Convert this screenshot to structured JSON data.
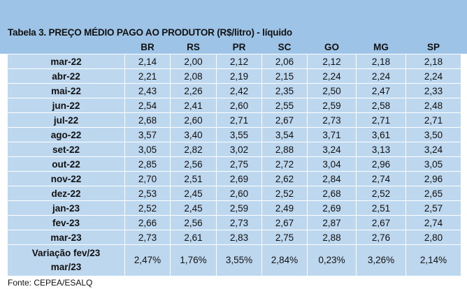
{
  "title": "Tabela 3. PREÇO MÉDIO PAGO AO PRODUTOR (R$/litro) - líquido",
  "columns": [
    "BR",
    "RS",
    "PR",
    "SC",
    "GO",
    "MG",
    "SP"
  ],
  "rows": [
    {
      "label": "mar-22",
      "values": [
        "2,14",
        "2,00",
        "2,12",
        "2,06",
        "2,12",
        "2,18",
        "2,18"
      ]
    },
    {
      "label": "abr-22",
      "values": [
        "2,21",
        "2,08",
        "2,19",
        "2,15",
        "2,24",
        "2,24",
        "2,24"
      ]
    },
    {
      "label": "mai-22",
      "values": [
        "2,43",
        "2,26",
        "2,42",
        "2,35",
        "2,50",
        "2,47",
        "2,33"
      ]
    },
    {
      "label": "jun-22",
      "values": [
        "2,54",
        "2,41",
        "2,60",
        "2,55",
        "2,59",
        "2,58",
        "2,48"
      ]
    },
    {
      "label": "jul-22",
      "values": [
        "2,68",
        "2,60",
        "2,71",
        "2,67",
        "2,73",
        "2,71",
        "2,71"
      ]
    },
    {
      "label": "ago-22",
      "values": [
        "3,57",
        "3,40",
        "3,55",
        "3,54",
        "3,71",
        "3,61",
        "3,50"
      ]
    },
    {
      "label": "set-22",
      "values": [
        "3,05",
        "2,82",
        "3,02",
        "2,88",
        "3,24",
        "3,13",
        "3,24"
      ]
    },
    {
      "label": "out-22",
      "values": [
        "2,85",
        "2,56",
        "2,75",
        "2,72",
        "3,04",
        "2,96",
        "3,05"
      ]
    },
    {
      "label": "nov-22",
      "values": [
        "2,70",
        "2,51",
        "2,69",
        "2,62",
        "2,84",
        "2,74",
        "2,96"
      ]
    },
    {
      "label": "dez-22",
      "values": [
        "2,53",
        "2,45",
        "2,60",
        "2,52",
        "2,68",
        "2,52",
        "2,65"
      ]
    },
    {
      "label": "jan-23",
      "values": [
        "2,52",
        "2,45",
        "2,59",
        "2,49",
        "2,69",
        "2,51",
        "2,57"
      ]
    },
    {
      "label": "fev-23",
      "values": [
        "2,66",
        "2,56",
        "2,73",
        "2,67",
        "2,87",
        "2,67",
        "2,74"
      ]
    },
    {
      "label": "mar-23",
      "values": [
        "2,73",
        "2,61",
        "2,83",
        "2,75",
        "2,88",
        "2,76",
        "2,80"
      ]
    }
  ],
  "variation": {
    "label_line1": "Variação fev/23",
    "label_line2": "mar/23",
    "values": [
      "2,47%",
      "1,76%",
      "3,55%",
      "2,84%",
      "0,23%",
      "3,26%",
      "2,14%"
    ]
  },
  "source": "Fonte: CEPEA/ESALQ"
}
